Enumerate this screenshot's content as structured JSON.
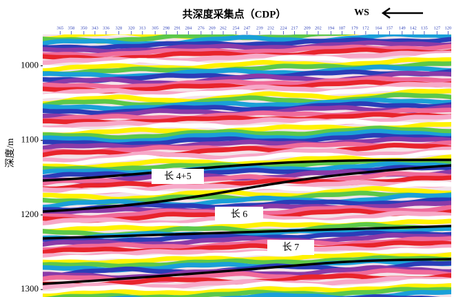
{
  "chart_data": {
    "type": "seismic-section",
    "title": "共深度采集点（CDP）",
    "direction": "WS",
    "y_label": "深度/m",
    "xlim": [
      376,
      118
    ],
    "xticks": [
      365,
      358,
      350,
      343,
      336,
      328,
      320,
      313,
      305,
      298,
      291,
      284,
      276,
      269,
      262,
      254,
      247,
      239,
      232,
      224,
      217,
      209,
      202,
      194,
      187,
      179,
      172,
      164,
      157,
      149,
      142,
      135,
      127,
      120
    ],
    "ylim": [
      958,
      1310
    ],
    "yticks": [
      1000,
      1100,
      1200,
      1300
    ],
    "annotations": [
      "长 4+5",
      "长 6",
      "长 7"
    ]
  }
}
